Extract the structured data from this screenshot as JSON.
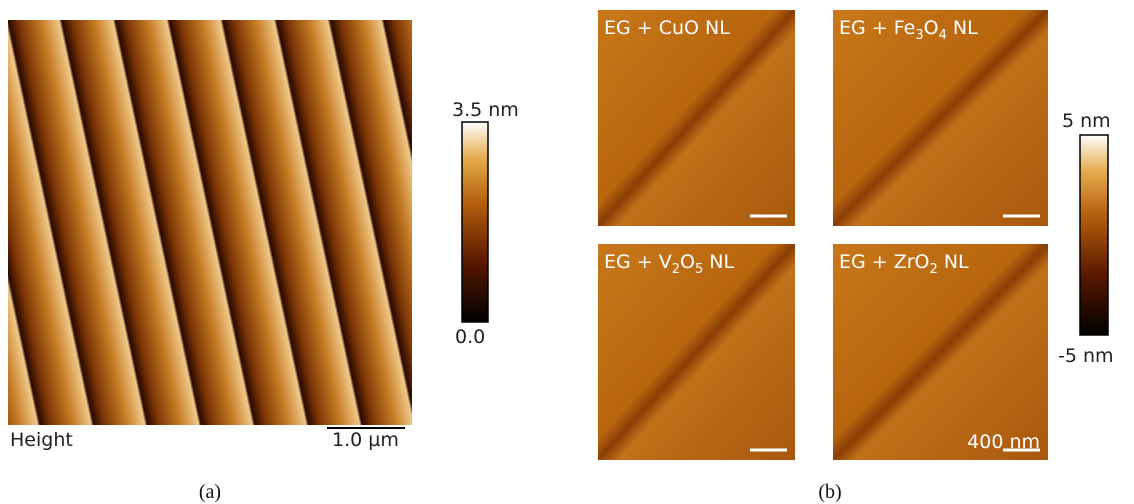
{
  "panel_a": {
    "image_label": "Height",
    "scale_bar": "1.0 µm",
    "colorbar": {
      "max": "3.5 nm",
      "min": "0.0"
    },
    "caption": "(a)"
  },
  "panel_b": {
    "images": [
      {
        "label": [
          {
            "t": "EG + CuO NL"
          }
        ]
      },
      {
        "label": [
          {
            "t": "EG + Fe"
          },
          {
            "sub": "3"
          },
          {
            "t": "O"
          },
          {
            "sub": "4"
          },
          {
            "t": " NL"
          }
        ]
      },
      {
        "label": [
          {
            "t": "EG + V"
          },
          {
            "sub": "2"
          },
          {
            "t": "O"
          },
          {
            "sub": "5"
          },
          {
            "t": " NL"
          }
        ]
      },
      {
        "label": [
          {
            "t": "EG + ZrO"
          },
          {
            "sub": "2"
          },
          {
            "t": " NL"
          }
        ]
      }
    ],
    "scale_bar": "400 nm",
    "colorbar": {
      "max": "5 nm",
      "min": "-5 nm"
    },
    "caption": "(b)"
  }
}
